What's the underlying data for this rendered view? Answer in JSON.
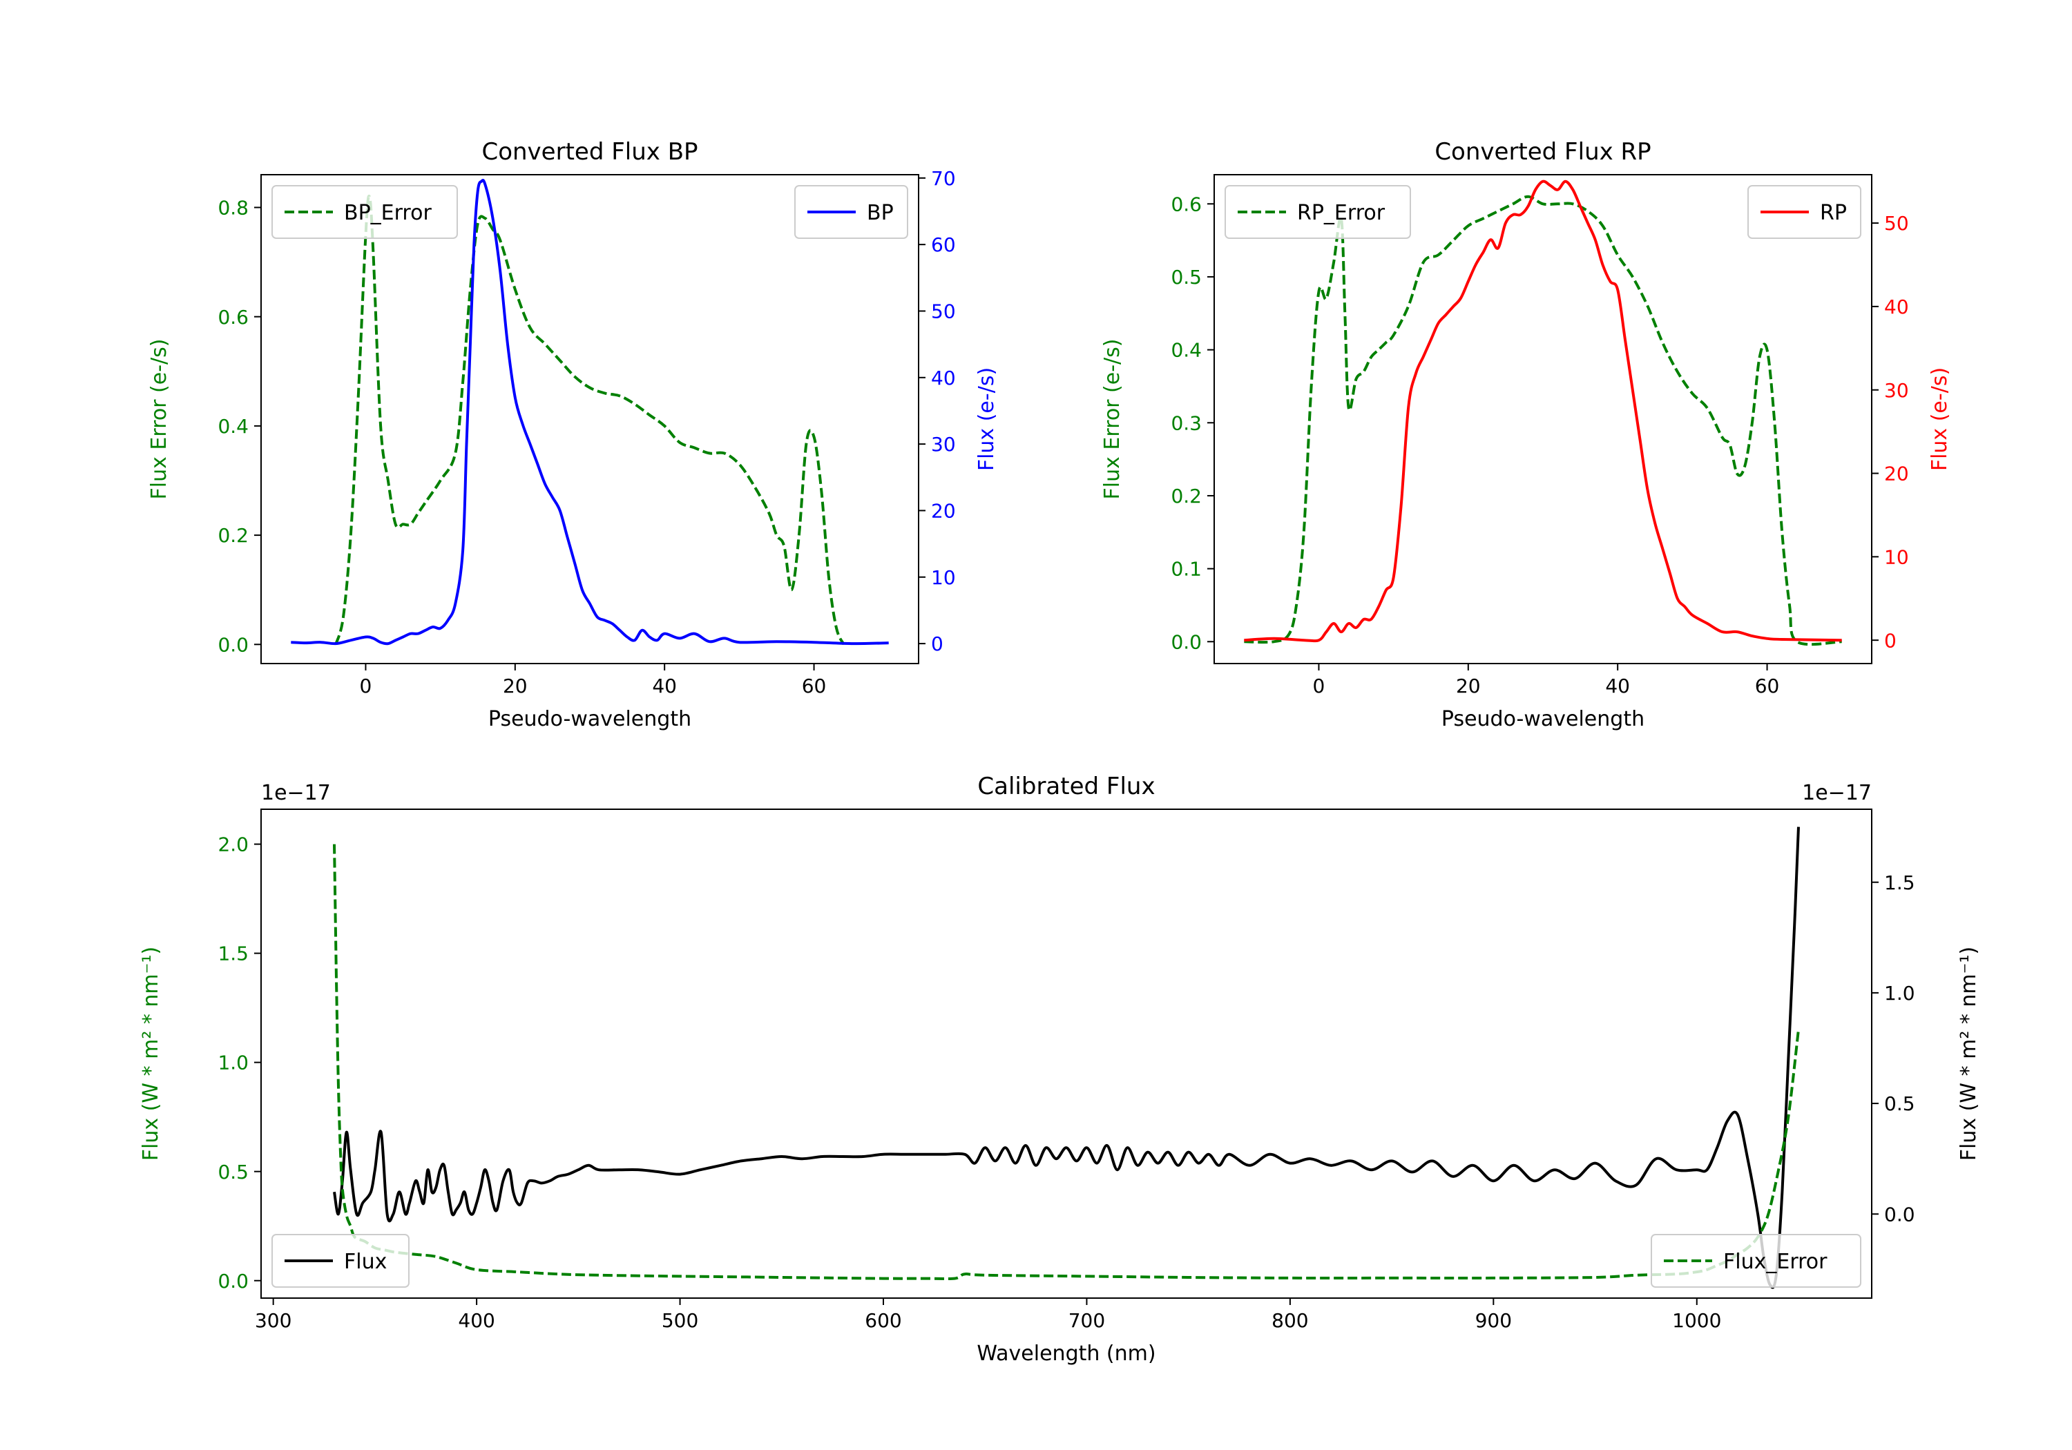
{
  "colors": {
    "error": "#008000",
    "bp": "#0000ff",
    "rp": "#ff0000",
    "flux": "#000000"
  },
  "chart_data": [
    {
      "type": "line",
      "title": "Converted Flux BP",
      "xlabel": "Pseudo-wavelength",
      "ylabel_left": "Flux Error (e-/s)",
      "ylabel_right": "Flux (e-/s)",
      "xlim": [
        -14,
        74
      ],
      "ylim_left": [
        -0.035,
        0.86
      ],
      "ylim_right": [
        -3,
        70.5
      ],
      "xticks": [
        0,
        20,
        40,
        60
      ],
      "yticks_left": [
        0.0,
        0.2,
        0.4,
        0.6,
        0.8
      ],
      "ytick_labels_left": [
        "0.0",
        "0.2",
        "0.4",
        "0.6",
        "0.8"
      ],
      "yticks_right": [
        0,
        10,
        20,
        30,
        40,
        50,
        60,
        70
      ],
      "legend": [
        {
          "label": "BP_Error",
          "placement": "upper left",
          "style": "dashed"
        },
        {
          "label": "BP",
          "placement": "upper right",
          "style": "solid"
        }
      ],
      "series": [
        {
          "name": "BP_Error",
          "axis": "left",
          "style": "dashed",
          "x": [
            -4,
            -3,
            -2,
            -1,
            0,
            0.5,
            1,
            2,
            3,
            4,
            5,
            6,
            7,
            8,
            10,
            12,
            13,
            14,
            15,
            16,
            17,
            18,
            20,
            22,
            24,
            26,
            28,
            30,
            32,
            34,
            36,
            38,
            40,
            42,
            44,
            46,
            48,
            50,
            52,
            54,
            55,
            56,
            57,
            58,
            59,
            60,
            61,
            62,
            63,
            64
          ],
          "y": [
            0.0,
            0.05,
            0.2,
            0.45,
            0.75,
            0.82,
            0.72,
            0.4,
            0.3,
            0.22,
            0.22,
            0.22,
            0.24,
            0.26,
            0.3,
            0.35,
            0.48,
            0.65,
            0.77,
            0.78,
            0.76,
            0.74,
            0.65,
            0.58,
            0.55,
            0.52,
            0.49,
            0.47,
            0.46,
            0.455,
            0.44,
            0.42,
            0.4,
            0.37,
            0.36,
            0.35,
            0.35,
            0.33,
            0.29,
            0.24,
            0.2,
            0.18,
            0.1,
            0.2,
            0.37,
            0.38,
            0.28,
            0.12,
            0.03,
            0.0
          ]
        },
        {
          "name": "BP",
          "axis": "right",
          "style": "solid",
          "x": [
            -10,
            -8,
            -6,
            -4,
            -2,
            0,
            1,
            2,
            3,
            4,
            5,
            6,
            7,
            8,
            9,
            10,
            11,
            12,
            13,
            13.5,
            14,
            14.5,
            15,
            15.5,
            16,
            17,
            18,
            19,
            20,
            21,
            22,
            23,
            24,
            25,
            26,
            27,
            28,
            29,
            30,
            31,
            32,
            33,
            34,
            35,
            36,
            37,
            38,
            39,
            40,
            42,
            44,
            46,
            48,
            50,
            55,
            60,
            65,
            70
          ],
          "y": [
            0.2,
            0.1,
            0.2,
            0.0,
            0.5,
            1.0,
            0.8,
            0.2,
            0.0,
            0.5,
            1.0,
            1.5,
            1.5,
            2.0,
            2.5,
            2.3,
            3.5,
            6.0,
            14.0,
            30.0,
            45.0,
            60.0,
            68.0,
            69.5,
            69.0,
            64.0,
            56.0,
            45.0,
            37.0,
            33.0,
            30.0,
            27.0,
            24.0,
            22.0,
            20.0,
            16.0,
            12.0,
            8.0,
            6.0,
            4.0,
            3.5,
            3.0,
            2.0,
            1.0,
            0.5,
            2.0,
            1.0,
            0.5,
            1.5,
            0.8,
            1.5,
            0.3,
            0.8,
            0.2,
            0.3,
            0.2,
            0.0,
            0.1
          ]
        }
      ]
    },
    {
      "type": "line",
      "title": "Converted Flux RP",
      "xlabel": "Pseudo-wavelength",
      "ylabel_left": "Flux Error (e-/s)",
      "ylabel_right": "Flux (e-/s)",
      "xlim": [
        -14,
        74
      ],
      "ylim_left": [
        -0.03,
        0.64
      ],
      "ylim_right": [
        -2.8,
        55.8
      ],
      "xticks": [
        0,
        20,
        40,
        60
      ],
      "yticks_left": [
        0.0,
        0.1,
        0.2,
        0.3,
        0.4,
        0.5,
        0.6
      ],
      "ytick_labels_left": [
        "0.0",
        "0.1",
        "0.2",
        "0.3",
        "0.4",
        "0.5",
        "0.6"
      ],
      "yticks_right": [
        0,
        10,
        20,
        30,
        40,
        50
      ],
      "legend": [
        {
          "label": "RP_Error",
          "placement": "upper left",
          "style": "dashed"
        },
        {
          "label": "RP",
          "placement": "upper right",
          "style": "solid"
        }
      ],
      "series": [
        {
          "name": "RP_Error",
          "axis": "left",
          "style": "dashed",
          "x": [
            -10,
            -6,
            -4,
            -3,
            -2,
            -1,
            0,
            1,
            2,
            3,
            3.5,
            4,
            5,
            6,
            7,
            8,
            9,
            10,
            12,
            14,
            16,
            18,
            20,
            22,
            24,
            26,
            28,
            30,
            32,
            34,
            36,
            38,
            40,
            42,
            44,
            46,
            48,
            50,
            52,
            54,
            55,
            56,
            57,
            58,
            59,
            60,
            61,
            62,
            63,
            64,
            70
          ],
          "y": [
            0.0,
            0.0,
            0.01,
            0.05,
            0.15,
            0.35,
            0.48,
            0.47,
            0.52,
            0.58,
            0.45,
            0.32,
            0.36,
            0.37,
            0.39,
            0.4,
            0.41,
            0.42,
            0.46,
            0.52,
            0.53,
            0.55,
            0.57,
            0.58,
            0.59,
            0.6,
            0.61,
            0.6,
            0.6,
            0.6,
            0.59,
            0.57,
            0.53,
            0.5,
            0.46,
            0.41,
            0.37,
            0.34,
            0.32,
            0.28,
            0.27,
            0.23,
            0.24,
            0.3,
            0.39,
            0.4,
            0.3,
            0.15,
            0.05,
            0.0,
            0.0
          ]
        },
        {
          "name": "RP",
          "axis": "right",
          "style": "solid",
          "x": [
            -10,
            -6,
            -2,
            0,
            1,
            2,
            3,
            4,
            5,
            6,
            7,
            8,
            9,
            10,
            11,
            12,
            13,
            14,
            15,
            16,
            17,
            18,
            19,
            20,
            21,
            22,
            23,
            24,
            25,
            26,
            27,
            28,
            29,
            30,
            31,
            32,
            33,
            34,
            35,
            36,
            37,
            38,
            39,
            40,
            41,
            42,
            43,
            44,
            45,
            46,
            47,
            48,
            49,
            50,
            52,
            54,
            56,
            58,
            60,
            62,
            70
          ],
          "y": [
            0.0,
            0.2,
            0.0,
            0.0,
            1.0,
            2.0,
            1.0,
            2.0,
            1.5,
            2.5,
            2.5,
            4.0,
            6.0,
            7.5,
            16.0,
            28.0,
            32.0,
            34.0,
            36.0,
            38.0,
            39.0,
            40.0,
            41.0,
            43.0,
            45.0,
            46.5,
            48.0,
            47.0,
            50.0,
            51.0,
            51.0,
            52.0,
            54.0,
            55.0,
            54.5,
            54.0,
            55.0,
            54.0,
            52.0,
            50.0,
            48.0,
            45.0,
            43.0,
            42.0,
            36.0,
            30.0,
            24.0,
            18.0,
            14.0,
            11.0,
            8.0,
            5.0,
            4.0,
            3.0,
            2.0,
            1.0,
            1.0,
            0.5,
            0.2,
            0.1,
            0.0
          ]
        }
      ]
    },
    {
      "type": "line",
      "title": "Calibrated Flux",
      "xlabel": "Wavelength (nm)",
      "ylabel_left": "Flux (W * m² * nm⁻¹)",
      "ylabel_right": "Flux (W * m² * nm⁻¹)",
      "offset_left": "1e−17",
      "offset_right": "1e−17",
      "xlim": [
        294,
        1086
      ],
      "ylim_left": [
        -0.08,
        2.16
      ],
      "ylim_right": [
        -0.38,
        1.83
      ],
      "xticks": [
        300,
        400,
        500,
        600,
        700,
        800,
        900,
        1000
      ],
      "yticks_left": [
        0.0,
        0.5,
        1.0,
        1.5,
        2.0
      ],
      "ytick_labels_left": [
        "0.0",
        "0.5",
        "1.0",
        "1.5",
        "2.0"
      ],
      "yticks_right": [
        0.0,
        0.5,
        1.0,
        1.5
      ],
      "ytick_labels_right": [
        "0.0",
        "0.5",
        "1.0",
        "1.5"
      ],
      "legend": [
        {
          "label": "Flux",
          "placement": "lower left",
          "style": "solid"
        },
        {
          "label": "Flux_Error",
          "placement": "lower right",
          "style": "dashed"
        }
      ],
      "series": [
        {
          "name": "Flux",
          "axis": "right",
          "style": "solid",
          "x": [
            330,
            332,
            334,
            336,
            338,
            341,
            344,
            348,
            350,
            353,
            356,
            359,
            362,
            365,
            367,
            370,
            372,
            374,
            376,
            378,
            380,
            382,
            384,
            386,
            388,
            390,
            392,
            394,
            396,
            398,
            400,
            402,
            404,
            406,
            408,
            410,
            413,
            416,
            418,
            420,
            422,
            425,
            428,
            432,
            436,
            440,
            445,
            450,
            455,
            460,
            470,
            480,
            490,
            500,
            510,
            520,
            530,
            540,
            550,
            560,
            570,
            580,
            590,
            600,
            610,
            620,
            630,
            640,
            645,
            650,
            655,
            660,
            665,
            670,
            675,
            680,
            685,
            690,
            695,
            700,
            705,
            710,
            715,
            720,
            725,
            730,
            735,
            740,
            745,
            750,
            755,
            760,
            765,
            770,
            780,
            790,
            800,
            810,
            820,
            830,
            840,
            850,
            860,
            870,
            880,
            890,
            900,
            910,
            920,
            930,
            940,
            950,
            960,
            970,
            980,
            990,
            1000,
            1005,
            1010,
            1015,
            1020,
            1025,
            1030,
            1033,
            1036,
            1039,
            1042,
            1045,
            1048,
            1050
          ],
          "y": [
            0.1,
            0.0,
            0.15,
            0.37,
            0.2,
            0.0,
            0.05,
            0.1,
            0.2,
            0.37,
            0.0,
            0.0,
            0.1,
            0.0,
            0.05,
            0.15,
            0.1,
            0.05,
            0.2,
            0.1,
            0.12,
            0.2,
            0.22,
            0.1,
            0.0,
            0.02,
            0.05,
            0.1,
            0.02,
            0.0,
            0.05,
            0.12,
            0.2,
            0.15,
            0.05,
            0.02,
            0.15,
            0.2,
            0.1,
            0.05,
            0.05,
            0.14,
            0.15,
            0.14,
            0.15,
            0.17,
            0.18,
            0.2,
            0.22,
            0.2,
            0.2,
            0.2,
            0.19,
            0.18,
            0.2,
            0.22,
            0.24,
            0.25,
            0.26,
            0.25,
            0.26,
            0.26,
            0.26,
            0.27,
            0.27,
            0.27,
            0.27,
            0.27,
            0.23,
            0.3,
            0.24,
            0.3,
            0.23,
            0.31,
            0.22,
            0.3,
            0.25,
            0.3,
            0.24,
            0.3,
            0.23,
            0.31,
            0.2,
            0.3,
            0.22,
            0.28,
            0.23,
            0.28,
            0.22,
            0.28,
            0.23,
            0.27,
            0.22,
            0.27,
            0.22,
            0.27,
            0.23,
            0.25,
            0.22,
            0.24,
            0.2,
            0.24,
            0.19,
            0.24,
            0.17,
            0.22,
            0.15,
            0.22,
            0.15,
            0.2,
            0.16,
            0.23,
            0.15,
            0.13,
            0.25,
            0.2,
            0.2,
            0.2,
            0.3,
            0.42,
            0.45,
            0.25,
            0.0,
            -0.2,
            -0.32,
            -0.28,
            0.1,
            0.7,
            1.3,
            1.75
          ]
        },
        {
          "name": "Flux_Error",
          "axis": "left",
          "style": "dashed",
          "x": [
            330,
            331,
            332,
            333,
            334,
            336,
            338,
            340,
            345,
            350,
            355,
            360,
            370,
            380,
            390,
            400,
            420,
            440,
            460,
            500,
            550,
            600,
            620,
            635,
            640,
            650,
            700,
            750,
            800,
            850,
            900,
            950,
            970,
            990,
            1000,
            1005,
            1010,
            1015,
            1020,
            1025,
            1030,
            1035,
            1040,
            1045,
            1050
          ],
          "y": [
            2.0,
            1.4,
            0.9,
            0.6,
            0.42,
            0.3,
            0.25,
            0.2,
            0.18,
            0.15,
            0.14,
            0.13,
            0.12,
            0.11,
            0.08,
            0.05,
            0.04,
            0.03,
            0.025,
            0.02,
            0.015,
            0.01,
            0.01,
            0.01,
            0.03,
            0.025,
            0.02,
            0.015,
            0.012,
            0.012,
            0.012,
            0.015,
            0.025,
            0.03,
            0.04,
            0.05,
            0.07,
            0.09,
            0.12,
            0.15,
            0.2,
            0.3,
            0.5,
            0.75,
            1.15
          ]
        }
      ]
    }
  ]
}
